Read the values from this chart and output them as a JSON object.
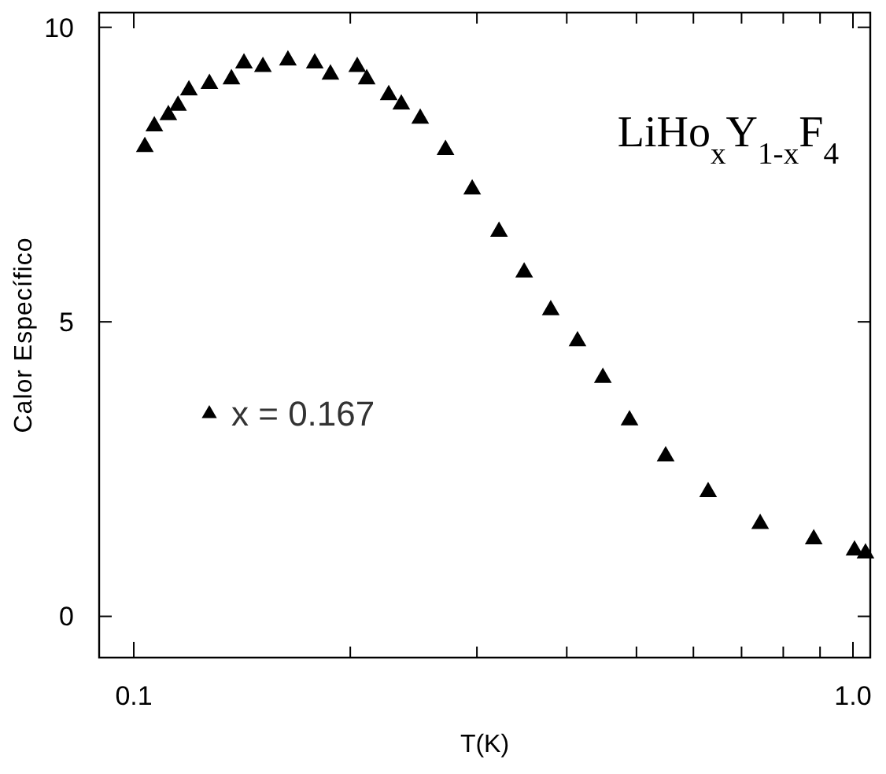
{
  "chart_data": {
    "type": "scatter",
    "xlabel": "T(K)",
    "ylabel": "Calor Específico",
    "log": "x",
    "xlim": [
      0.0895,
      1.057
    ],
    "xticks": [
      {
        "value": 0.1,
        "label": "0.1"
      },
      {
        "value": 0.2,
        "label": null
      },
      {
        "value": 0.3,
        "label": null
      },
      {
        "value": 0.4,
        "label": null
      },
      {
        "value": 0.5,
        "label": null
      },
      {
        "value": 0.6,
        "label": null
      },
      {
        "value": 0.7,
        "label": null
      },
      {
        "value": 0.8,
        "label": null
      },
      {
        "value": 0.9,
        "label": null
      },
      {
        "value": 1,
        "label": "1.0"
      }
    ],
    "ylim": [
      -0.7,
      10.25
    ],
    "yticks": [
      0,
      5,
      10
    ],
    "grid": false,
    "legend": "left",
    "marker": "triangle",
    "annotations": [
      "LiHo$_{x}$Y$_{1-x}$F$_{4}$"
    ],
    "series": [
      {
        "name": "x = 0.167",
        "color": "#000000",
        "x": [
          0.1036,
          0.1068,
          0.1117,
          0.1152,
          0.1193,
          0.1274,
          0.1367,
          0.1423,
          0.1512,
          0.1638,
          0.1785,
          0.1877,
          0.2045,
          0.2108,
          0.2262,
          0.2355,
          0.2502,
          0.2713,
          0.2955,
          0.322,
          0.349,
          0.38,
          0.414,
          0.449,
          0.489,
          0.549,
          0.629,
          0.743,
          0.882,
          1.005,
          1.041
        ],
        "values": [
          7.97,
          8.32,
          8.51,
          8.67,
          8.93,
          9.04,
          9.12,
          9.39,
          9.33,
          9.44,
          9.39,
          9.2,
          9.33,
          9.12,
          8.85,
          8.69,
          8.45,
          7.92,
          7.25,
          6.53,
          5.84,
          5.2,
          4.67,
          4.05,
          3.33,
          2.72,
          2.11,
          1.57,
          1.31,
          1.12,
          1.07
        ]
      }
    ]
  }
}
